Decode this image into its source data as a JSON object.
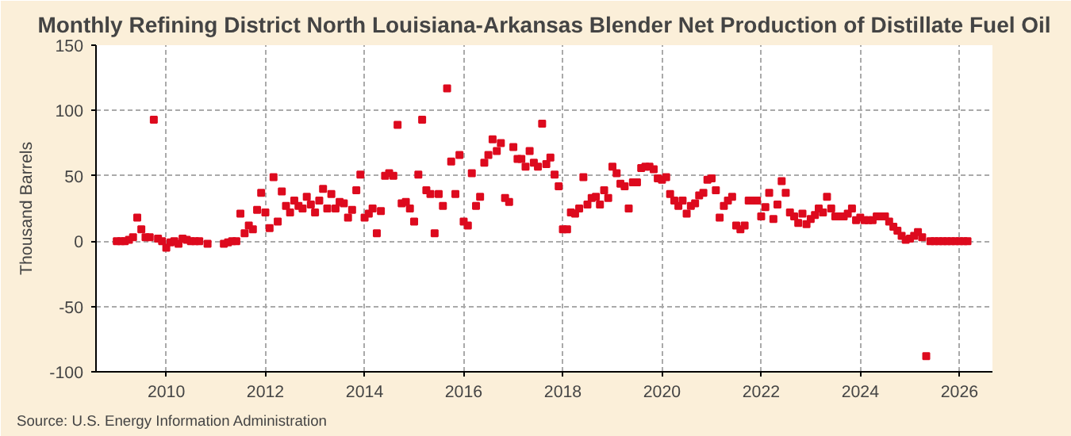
{
  "chart_data": {
    "type": "scatter",
    "title": "Monthly Refining District North Louisiana-Arkansas Blender Net Production of Distillate Fuel Oil",
    "ylabel": "Thousand Barrels",
    "annotations": [
      "Source: U.S. Energy Information Administration"
    ],
    "x": [
      "2009-01",
      "2009-02",
      "2009-03",
      "2009-04",
      "2009-05",
      "2009-06",
      "2009-07",
      "2009-08",
      "2009-09",
      "2009-10",
      "2009-11",
      "2009-12",
      "2010-01",
      "2010-02",
      "2010-03",
      "2010-04",
      "2010-05",
      "2010-06",
      "2010-07",
      "2010-08",
      "2010-09",
      "2010-10",
      "2010-11",
      "2010-12",
      "2011-01",
      "2011-02",
      "2011-03",
      "2011-04",
      "2011-05",
      "2011-06",
      "2011-07",
      "2011-08",
      "2011-09",
      "2011-10",
      "2011-11",
      "2011-12",
      "2012-01",
      "2012-02",
      "2012-03",
      "2012-04",
      "2012-05",
      "2012-06",
      "2012-07",
      "2012-08",
      "2012-09",
      "2012-10",
      "2012-11",
      "2012-12",
      "2013-01",
      "2013-02",
      "2013-03",
      "2013-04",
      "2013-05",
      "2013-06",
      "2013-07",
      "2013-08",
      "2013-09",
      "2013-10",
      "2013-11",
      "2013-12",
      "2014-01",
      "2014-02",
      "2014-03",
      "2014-04",
      "2014-05",
      "2014-06",
      "2014-07",
      "2014-08",
      "2014-09",
      "2014-10",
      "2014-11",
      "2014-12",
      "2015-01",
      "2015-02",
      "2015-03",
      "2015-04",
      "2015-05",
      "2015-06",
      "2015-07",
      "2015-08",
      "2015-09",
      "2015-10",
      "2015-11",
      "2015-12",
      "2016-01",
      "2016-02",
      "2016-03",
      "2016-04",
      "2016-05",
      "2016-06",
      "2016-07",
      "2016-08",
      "2016-09",
      "2016-10",
      "2016-11",
      "2016-12",
      "2017-01",
      "2017-02",
      "2017-03",
      "2017-04",
      "2017-05",
      "2017-06",
      "2017-07",
      "2017-08",
      "2017-09",
      "2017-10",
      "2017-11",
      "2017-12",
      "2018-01",
      "2018-02",
      "2018-03",
      "2018-04",
      "2018-05",
      "2018-06",
      "2018-07",
      "2018-08",
      "2018-09",
      "2018-10",
      "2018-11",
      "2018-12",
      "2019-01",
      "2019-02",
      "2019-03",
      "2019-04",
      "2019-05",
      "2019-06",
      "2019-07",
      "2019-08",
      "2019-09",
      "2019-10",
      "2019-11",
      "2019-12",
      "2020-01",
      "2020-02",
      "2020-03",
      "2020-04",
      "2020-05",
      "2020-06",
      "2020-07",
      "2020-08",
      "2020-09",
      "2020-10",
      "2020-11",
      "2020-12",
      "2021-01",
      "2021-02",
      "2021-03",
      "2021-04",
      "2021-05",
      "2021-06",
      "2021-07",
      "2021-08",
      "2021-09",
      "2021-10",
      "2021-11",
      "2021-12",
      "2022-01",
      "2022-02",
      "2022-03",
      "2022-04",
      "2022-05",
      "2022-06",
      "2022-07",
      "2022-08",
      "2022-09",
      "2022-10",
      "2022-11",
      "2022-12",
      "2023-01",
      "2023-02",
      "2023-03",
      "2023-04",
      "2023-05",
      "2023-06",
      "2023-07",
      "2023-08",
      "2023-09",
      "2023-10",
      "2023-11",
      "2023-12",
      "2024-01",
      "2024-02",
      "2024-03",
      "2024-04",
      "2024-05",
      "2024-06",
      "2024-07",
      "2024-08",
      "2024-09",
      "2024-10",
      "2024-11",
      "2024-12",
      "2025-01",
      "2025-02",
      "2025-03",
      "2025-04",
      "2025-05",
      "2025-06",
      "2025-07",
      "2025-08",
      "2025-09",
      "2025-10",
      "2025-11",
      "2025-12",
      "2026-01",
      "2026-02",
      "2026-03"
    ],
    "series": [
      {
        "color": "#dd0a1e",
        "values": [
          0,
          0,
          0,
          1,
          3,
          18,
          9,
          3,
          3,
          93,
          2,
          0,
          -5,
          -1,
          0,
          -2,
          2,
          1,
          0,
          0,
          0,
          null,
          -2,
          null,
          null,
          null,
          -2,
          -1,
          0,
          0,
          21,
          6,
          12,
          9,
          24,
          37,
          22,
          10,
          49,
          15,
          38,
          27,
          22,
          31,
          27,
          25,
          34,
          28,
          22,
          31,
          40,
          25,
          36,
          25,
          30,
          29,
          18,
          24,
          39,
          51,
          18,
          21,
          25,
          6,
          23,
          50,
          52,
          50,
          89,
          29,
          30,
          25,
          15,
          51,
          93,
          39,
          36,
          6,
          36,
          27,
          117,
          61,
          36,
          66,
          15,
          12,
          52,
          27,
          34,
          60,
          66,
          78,
          69,
          75,
          33,
          30,
          72,
          63,
          63,
          57,
          69,
          60,
          57,
          90,
          59,
          64,
          51,
          42,
          9,
          9,
          22,
          21,
          25,
          49,
          28,
          33,
          34,
          28,
          39,
          33,
          57,
          52,
          44,
          42,
          25,
          45,
          45,
          56,
          57,
          57,
          55,
          48,
          47,
          49,
          36,
          31,
          27,
          31,
          21,
          27,
          29,
          35,
          37,
          47,
          48,
          39,
          18,
          27,
          31,
          34,
          12,
          9,
          12,
          31,
          31,
          31,
          19,
          26,
          37,
          17,
          28,
          46,
          37,
          22,
          19,
          14,
          21,
          13,
          17,
          20,
          25,
          22,
          34,
          25,
          19,
          19,
          19,
          21,
          25,
          16,
          18,
          16,
          16,
          16,
          19,
          19,
          19,
          15,
          11,
          8,
          4,
          1,
          2,
          4,
          7,
          3,
          -88,
          0,
          0,
          0,
          0,
          0,
          0,
          0,
          0,
          0,
          0
        ]
      }
    ],
    "xlim": [
      "2008-08",
      "2026-09"
    ],
    "xticks": [
      "2010",
      "2012",
      "2014",
      "2016",
      "2018",
      "2020",
      "2022",
      "2024",
      "2026"
    ],
    "ylim": [
      -100,
      150
    ],
    "yticks": [
      -100,
      -50,
      0,
      50,
      100,
      150
    ],
    "grid": true,
    "marker": "square"
  }
}
